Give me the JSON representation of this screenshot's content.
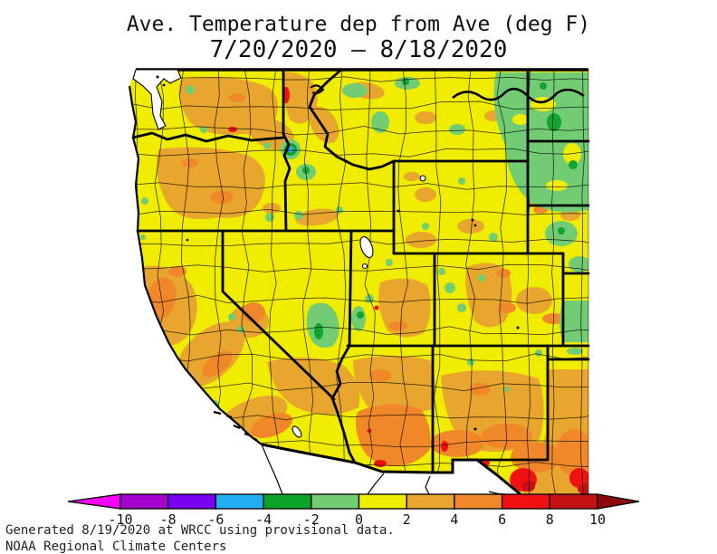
{
  "title": {
    "line1": "Ave. Temperature dep from Ave (deg F)",
    "line2": "7/20/2020 – 8/18/2020"
  },
  "footer": {
    "line1": "Generated 8/19/2020 at WRCC using provisional data.",
    "line2": "NOAA Regional Climate Centers"
  },
  "colorbar": {
    "tick_labels": [
      "-10",
      "-8",
      "-6",
      "-4",
      "-2",
      "0",
      "2",
      "4",
      "6",
      "8",
      "10"
    ],
    "segment_colors": [
      "#A400CC",
      "#7A00F2",
      "#24AEF2",
      "#0CA428",
      "#72CC74",
      "#F0EC00",
      "#E8A62E",
      "#F0882A",
      "#F01212",
      "#C41212"
    ],
    "below_range_color": "#FA00FA",
    "above_range_color": "#8E0A0A"
  },
  "map_colors": {
    "yellow": "#F0EC00",
    "tan": "#E8A62E",
    "orange": "#F0882A",
    "red": "#F01212",
    "darkred": "#C41212",
    "lgreen": "#72CC74",
    "green": "#12A430",
    "blue": "#28B0F0"
  }
}
